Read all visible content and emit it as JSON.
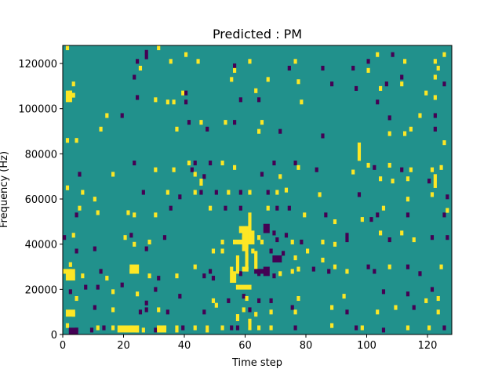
{
  "chart_data": {
    "type": "heatmap",
    "title": "Predicted : PM",
    "xlabel": "Time step",
    "ylabel": "Frequency (Hz)",
    "xlim": [
      0,
      128
    ],
    "ylim": [
      0,
      128000
    ],
    "x_ticks": [
      0,
      20,
      40,
      60,
      80,
      100,
      120
    ],
    "y_ticks": [
      0,
      20000,
      40000,
      60000,
      80000,
      100000,
      120000
    ],
    "x_tick_labels": [
      "0",
      "20",
      "40",
      "60",
      "80",
      "100",
      "120"
    ],
    "y_tick_labels": [
      "0",
      "20000",
      "40000",
      "60000",
      "80000",
      "100000",
      "120000"
    ],
    "n_time_steps": 128,
    "n_freq_bins": 128,
    "freq_bin_hz": 1000,
    "colormap": "viridis",
    "class_colors": {
      "0": "#440154",
      "1": "#21918c",
      "2": "#fde725"
    },
    "background_class": 1,
    "note_classes": "0 = dark purple, 1 = teal (background), 2 = yellow",
    "cells": [
      [
        1,
        126,
        2
      ],
      [
        27,
        124,
        0
      ],
      [
        31,
        126,
        2
      ],
      [
        27,
        122,
        0
      ],
      [
        40,
        123,
        2
      ],
      [
        103,
        123,
        2
      ],
      [
        108,
        123,
        0
      ],
      [
        125,
        123,
        2
      ],
      [
        24,
        120,
        0
      ],
      [
        35,
        120,
        2
      ],
      [
        44,
        120,
        2
      ],
      [
        61,
        120,
        2
      ],
      [
        76,
        120,
        2
      ],
      [
        100,
        120,
        0
      ],
      [
        112,
        120,
        2
      ],
      [
        122,
        120,
        2
      ],
      [
        25,
        117,
        2
      ],
      [
        74,
        117,
        0
      ],
      [
        85,
        117,
        0
      ],
      [
        95,
        117,
        0
      ],
      [
        100,
        116,
        2
      ],
      [
        123,
        117,
        2
      ],
      [
        56,
        118,
        0
      ],
      [
        56,
        116,
        2
      ],
      [
        23,
        113,
        0
      ],
      [
        111,
        113,
        0
      ],
      [
        122,
        113,
        2
      ],
      [
        55,
        112,
        2
      ],
      [
        67,
        112,
        2
      ],
      [
        77,
        111,
        2
      ],
      [
        3,
        110,
        2
      ],
      [
        88,
        110,
        0
      ],
      [
        106,
        110,
        0
      ],
      [
        111,
        110,
        2
      ],
      [
        125,
        110,
        0
      ],
      [
        2,
        106,
        2
      ],
      [
        3,
        105,
        2
      ],
      [
        39,
        106,
        2
      ],
      [
        40,
        106,
        0
      ],
      [
        63,
        107,
        2
      ],
      [
        96,
        108,
        0
      ],
      [
        104,
        108,
        2
      ],
      [
        119,
        106,
        2
      ],
      [
        30,
        103,
        2
      ],
      [
        34,
        102,
        2
      ],
      [
        36,
        102,
        2
      ],
      [
        40,
        102,
        0
      ],
      [
        58,
        103,
        0
      ],
      [
        64,
        103,
        0
      ],
      [
        78,
        102,
        2
      ],
      [
        103,
        102,
        0
      ],
      [
        122,
        104,
        2
      ],
      [
        24,
        104,
        0
      ],
      [
        14,
        96,
        2
      ],
      [
        19,
        96,
        0
      ],
      [
        41,
        93,
        0
      ],
      [
        45,
        93,
        2
      ],
      [
        53,
        93,
        2
      ],
      [
        56,
        93,
        0
      ],
      [
        65,
        93,
        2
      ],
      [
        107,
        95,
        0
      ],
      [
        117,
        96,
        2
      ],
      [
        122,
        96,
        0
      ],
      [
        1,
        85,
        2
      ],
      [
        4,
        85,
        2
      ],
      [
        12,
        90,
        2
      ],
      [
        37,
        90,
        2
      ],
      [
        47,
        90,
        0
      ],
      [
        64,
        89,
        2
      ],
      [
        71,
        89,
        0
      ],
      [
        85,
        87,
        0
      ],
      [
        107,
        88,
        2
      ],
      [
        112,
        88,
        2
      ],
      [
        114,
        90,
        2
      ],
      [
        122,
        90,
        0
      ],
      [
        125,
        84,
        2
      ],
      [
        23,
        75,
        0
      ],
      [
        41,
        75,
        2
      ],
      [
        43,
        75,
        0
      ],
      [
        48,
        75,
        0
      ],
      [
        52,
        75,
        2
      ],
      [
        56,
        73,
        2
      ],
      [
        69,
        75,
        0
      ],
      [
        76,
        75,
        0
      ],
      [
        77,
        73,
        2
      ],
      [
        83,
        72,
        0
      ],
      [
        100,
        74,
        2
      ],
      [
        102,
        73,
        0
      ],
      [
        107,
        74,
        2
      ],
      [
        111,
        72,
        0
      ],
      [
        114,
        72,
        2
      ],
      [
        121,
        72,
        2
      ],
      [
        124,
        73,
        2
      ],
      [
        5,
        70,
        0
      ],
      [
        16,
        70,
        2
      ],
      [
        30,
        72,
        2
      ],
      [
        36,
        72,
        2
      ],
      [
        42,
        72,
        0
      ],
      [
        46,
        69,
        0
      ],
      [
        65,
        70,
        0
      ],
      [
        71,
        69,
        2
      ],
      [
        95,
        71,
        2
      ],
      [
        104,
        68,
        2
      ],
      [
        108,
        67,
        2
      ],
      [
        113,
        68,
        2
      ],
      [
        120,
        67,
        0
      ],
      [
        1,
        64,
        2
      ],
      [
        6,
        62,
        2
      ],
      [
        10,
        59,
        2
      ],
      [
        26,
        62,
        0
      ],
      [
        34,
        62,
        2
      ],
      [
        38,
        60,
        0
      ],
      [
        43,
        62,
        2
      ],
      [
        45,
        62,
        0
      ],
      [
        50,
        62,
        0
      ],
      [
        54,
        62,
        2
      ],
      [
        58,
        62,
        0
      ],
      [
        61,
        62,
        2
      ],
      [
        67,
        62,
        0
      ],
      [
        70,
        62,
        2
      ],
      [
        73,
        63,
        2
      ],
      [
        84,
        61,
        2
      ],
      [
        97,
        61,
        0
      ],
      [
        113,
        59,
        2
      ],
      [
        121,
        61,
        2
      ],
      [
        126,
        60,
        0
      ],
      [
        4,
        52,
        0
      ],
      [
        5,
        55,
        2
      ],
      [
        11,
        53,
        2
      ],
      [
        21,
        53,
        2
      ],
      [
        23,
        52,
        2
      ],
      [
        30,
        52,
        2
      ],
      [
        35,
        55,
        0
      ],
      [
        48,
        55,
        2
      ],
      [
        53,
        55,
        0
      ],
      [
        58,
        55,
        0
      ],
      [
        67,
        55,
        2
      ],
      [
        70,
        55,
        0
      ],
      [
        74,
        55,
        0
      ],
      [
        79,
        52,
        2
      ],
      [
        86,
        52,
        0
      ],
      [
        89,
        49,
        2
      ],
      [
        98,
        50,
        2
      ],
      [
        101,
        50,
        0
      ],
      [
        103,
        52,
        0
      ],
      [
        105,
        55,
        2
      ],
      [
        113,
        52,
        0
      ],
      [
        125,
        52,
        0
      ],
      [
        126,
        54,
        2
      ],
      [
        0,
        42,
        0
      ],
      [
        3,
        43,
        2
      ],
      [
        20,
        42,
        2
      ],
      [
        22,
        43,
        0
      ],
      [
        28,
        40,
        2
      ],
      [
        33,
        42,
        0
      ],
      [
        52,
        40,
        2
      ],
      [
        59,
        42,
        2
      ],
      [
        64,
        42,
        2
      ],
      [
        65,
        40,
        2
      ],
      [
        69,
        44,
        0
      ],
      [
        70,
        41,
        0
      ],
      [
        73,
        43,
        0
      ],
      [
        75,
        40,
        2
      ],
      [
        78,
        40,
        0
      ],
      [
        85,
        40,
        2
      ],
      [
        93,
        43,
        0
      ],
      [
        104,
        44,
        2
      ],
      [
        107,
        41,
        0
      ],
      [
        111,
        44,
        2
      ],
      [
        115,
        41,
        2
      ],
      [
        121,
        42,
        0
      ],
      [
        126,
        42,
        0
      ],
      [
        4,
        36,
        0
      ],
      [
        10,
        37,
        0
      ],
      [
        23,
        39,
        2
      ],
      [
        27,
        37,
        0
      ],
      [
        49,
        36,
        2
      ],
      [
        52,
        36,
        2
      ],
      [
        60,
        36,
        0
      ],
      [
        62,
        36,
        2
      ],
      [
        68,
        36,
        0
      ],
      [
        72,
        35,
        0
      ],
      [
        76,
        33,
        2
      ],
      [
        80,
        36,
        2
      ],
      [
        89,
        39,
        2
      ],
      [
        93,
        41,
        0
      ],
      [
        0,
        27,
        2
      ],
      [
        2,
        30,
        2
      ],
      [
        3,
        27,
        0
      ],
      [
        6,
        25,
        2
      ],
      [
        12,
        27,
        0
      ],
      [
        14,
        24,
        2
      ],
      [
        22,
        27,
        2
      ],
      [
        28,
        25,
        2
      ],
      [
        31,
        24,
        0
      ],
      [
        37,
        25,
        2
      ],
      [
        43,
        29,
        2
      ],
      [
        46,
        25,
        0
      ],
      [
        48,
        27,
        0
      ],
      [
        49,
        24,
        0
      ],
      [
        55,
        28,
        2
      ],
      [
        58,
        26,
        0
      ],
      [
        60,
        28,
        2
      ],
      [
        64,
        26,
        0
      ],
      [
        69,
        25,
        0
      ],
      [
        71,
        26,
        2
      ],
      [
        75,
        27,
        2
      ],
      [
        77,
        28,
        2
      ],
      [
        82,
        28,
        0
      ],
      [
        85,
        32,
        2
      ],
      [
        87,
        27,
        0
      ],
      [
        89,
        29,
        2
      ],
      [
        93,
        27,
        2
      ],
      [
        100,
        29,
        0
      ],
      [
        102,
        27,
        0
      ],
      [
        107,
        29,
        2
      ],
      [
        113,
        29,
        0
      ],
      [
        117,
        26,
        0
      ],
      [
        124,
        29,
        2
      ],
      [
        2,
        18,
        0
      ],
      [
        4,
        15,
        2
      ],
      [
        7,
        20,
        0
      ],
      [
        11,
        20,
        0
      ],
      [
        16,
        18,
        2
      ],
      [
        19,
        21,
        0
      ],
      [
        24,
        17,
        2
      ],
      [
        27,
        13,
        0
      ],
      [
        30,
        19,
        0
      ],
      [
        38,
        16,
        0
      ],
      [
        49,
        14,
        2
      ],
      [
        54,
        14,
        0
      ],
      [
        59,
        16,
        0
      ],
      [
        60,
        15,
        2
      ],
      [
        64,
        14,
        0
      ],
      [
        68,
        14,
        0
      ],
      [
        77,
        15,
        2
      ],
      [
        92,
        16,
        2
      ],
      [
        105,
        18,
        0
      ],
      [
        113,
        17,
        0
      ],
      [
        119,
        14,
        2
      ],
      [
        121,
        19,
        0
      ],
      [
        123,
        15,
        2
      ],
      [
        3,
        8,
        2
      ],
      [
        10,
        11,
        0
      ],
      [
        16,
        10,
        2
      ],
      [
        25,
        9,
        0
      ],
      [
        27,
        10,
        0
      ],
      [
        31,
        10,
        2
      ],
      [
        34,
        9,
        0
      ],
      [
        46,
        9,
        0
      ],
      [
        50,
        12,
        2
      ],
      [
        59,
        10,
        2
      ],
      [
        61,
        10,
        0
      ],
      [
        63,
        8,
        2
      ],
      [
        68,
        9,
        2
      ],
      [
        75,
        11,
        0
      ],
      [
        76,
        9,
        2
      ],
      [
        88,
        11,
        2
      ],
      [
        93,
        9,
        0
      ],
      [
        103,
        9,
        2
      ],
      [
        109,
        11,
        2
      ],
      [
        115,
        11,
        0
      ],
      [
        123,
        9,
        2
      ],
      [
        1,
        3,
        2
      ],
      [
        4,
        1,
        0
      ],
      [
        9,
        1,
        0
      ],
      [
        11,
        2,
        2
      ],
      [
        13,
        2,
        0
      ],
      [
        16,
        2,
        2
      ],
      [
        19,
        1,
        0
      ],
      [
        22,
        2,
        2
      ],
      [
        26,
        1,
        2
      ],
      [
        30,
        1,
        0
      ],
      [
        31,
        2,
        2
      ],
      [
        33,
        2,
        2
      ],
      [
        39,
        2,
        0
      ],
      [
        43,
        2,
        2
      ],
      [
        47,
        2,
        0
      ],
      [
        52,
        2,
        2
      ],
      [
        55,
        2,
        0
      ],
      [
        57,
        2,
        0
      ],
      [
        61,
        3,
        0
      ],
      [
        64,
        2,
        2
      ],
      [
        68,
        2,
        2
      ],
      [
        76,
        2,
        0
      ],
      [
        88,
        3,
        2
      ],
      [
        96,
        2,
        0
      ],
      [
        98,
        2,
        2
      ],
      [
        105,
        1,
        0
      ],
      [
        113,
        2,
        2
      ],
      [
        120,
        2,
        2
      ],
      [
        125,
        2,
        0
      ]
    ],
    "cell_runs": [
      [
        43,
        70,
        1,
        2,
        2
      ],
      [
        45,
        66,
        1,
        3,
        2
      ],
      [
        55,
        23,
        1,
        5,
        2
      ],
      [
        56,
        23,
        1,
        5,
        2
      ],
      [
        57,
        27,
        1,
        8,
        2
      ],
      [
        59,
        28,
        2,
        2,
        2
      ],
      [
        57,
        20,
        5,
        2,
        2
      ],
      [
        56,
        40,
        4,
        2,
        2
      ],
      [
        59,
        37,
        1,
        9,
        2
      ],
      [
        60,
        29,
        1,
        17,
        2
      ],
      [
        61,
        40,
        1,
        14,
        2
      ],
      [
        62,
        40,
        1,
        6,
        2
      ],
      [
        63,
        29,
        1,
        8,
        2
      ],
      [
        63,
        27,
        2,
        2,
        0
      ],
      [
        64,
        27,
        2,
        2,
        0
      ],
      [
        61,
        2,
        1,
        5,
        2
      ],
      [
        57,
        6,
        1,
        3,
        2
      ],
      [
        97,
        77,
        1,
        8,
        2
      ],
      [
        122,
        65,
        1,
        6,
        2
      ],
      [
        66,
        26,
        2,
        4,
        0
      ],
      [
        69,
        32,
        3,
        3,
        0
      ],
      [
        66,
        45,
        2,
        4,
        0
      ],
      [
        58,
        45,
        3,
        3,
        2
      ],
      [
        24,
        1,
        1,
        3,
        2
      ],
      [
        18,
        1,
        7,
        3,
        2
      ],
      [
        31,
        1,
        3,
        3,
        2
      ],
      [
        37,
        1,
        1,
        3,
        2
      ],
      [
        47,
        1,
        1,
        3,
        2
      ],
      [
        22,
        27,
        3,
        4,
        2
      ],
      [
        1,
        103,
        2,
        5,
        2
      ],
      [
        1,
        24,
        3,
        5,
        2
      ],
      [
        1,
        8,
        3,
        3,
        2
      ],
      [
        2,
        0,
        3,
        3,
        0
      ]
    ]
  }
}
